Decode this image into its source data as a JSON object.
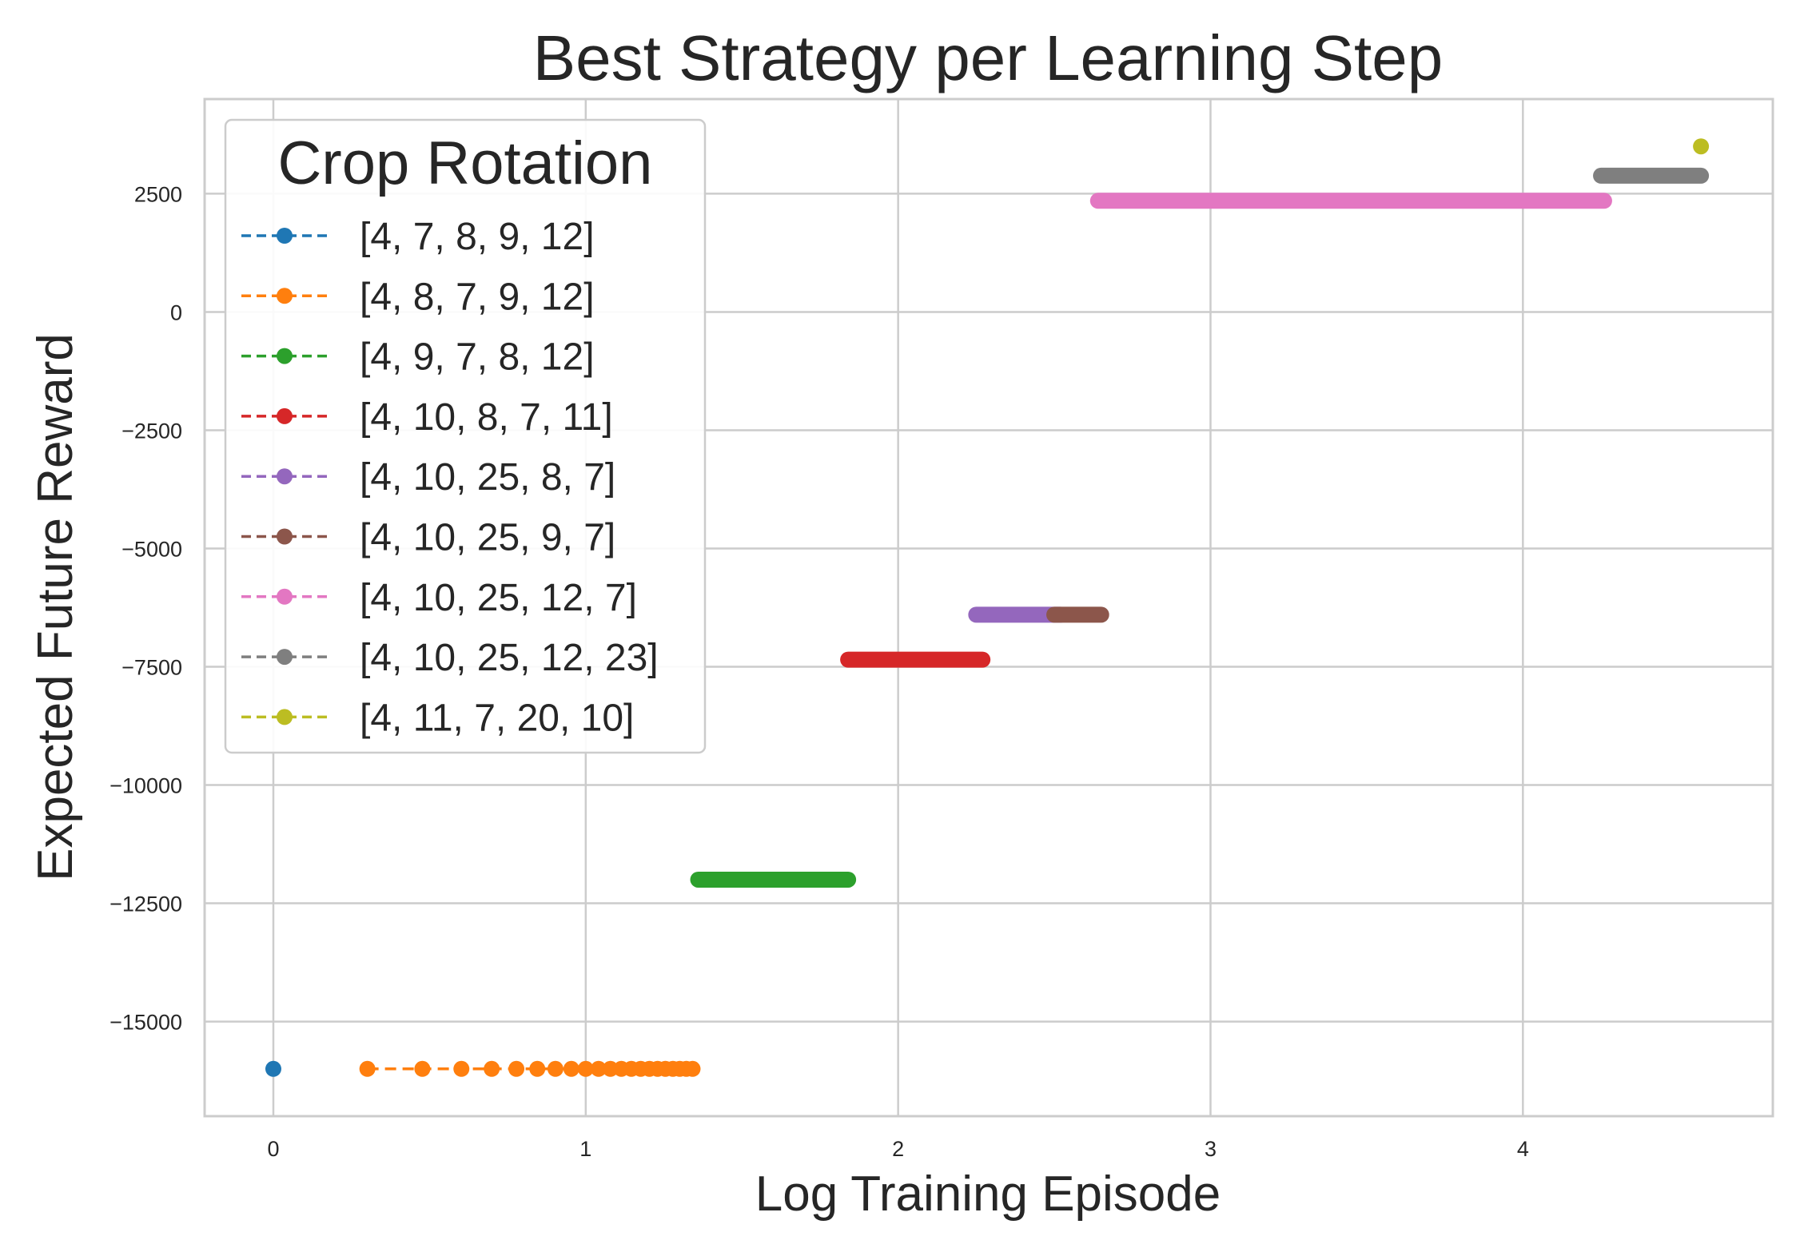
{
  "chart_data": {
    "type": "line",
    "title": "Best Strategy per Learning Step",
    "xlabel": "Log Training Episode",
    "ylabel": "Expected Future Reward",
    "xlim": [
      -0.22,
      4.8
    ],
    "ylim": [
      -17000,
      4500
    ],
    "xticks": [
      0,
      1,
      2,
      3,
      4
    ],
    "xtick_labels": [
      "0",
      "1",
      "2",
      "3",
      "4"
    ],
    "yticks": [
      2500,
      0,
      -2500,
      -5000,
      -7500,
      -10000,
      -12500,
      -15000
    ],
    "ytick_labels": [
      "2500",
      "0",
      "−2500",
      "−5000",
      "−7500",
      "−10000",
      "−12500",
      "−15000"
    ],
    "grid": true,
    "legend": {
      "title": "Crop Rotation",
      "placement": "upper-left"
    },
    "series": [
      {
        "name": "[4, 7, 8, 9, 12]",
        "color": "#1f77b4",
        "style": "points",
        "x": [
          0.0
        ],
        "y": [
          -16000
        ]
      },
      {
        "name": "[4, 8, 7, 9, 12]",
        "color": "#ff7f0e",
        "style": "points",
        "x": [
          0.301,
          0.477,
          0.602,
          0.699,
          0.778,
          0.845,
          0.903,
          0.954,
          1.0,
          1.041,
          1.079,
          1.114,
          1.146,
          1.176,
          1.204,
          1.23,
          1.255,
          1.279,
          1.301,
          1.322,
          1.342
        ],
        "y": [
          -16000,
          -16000,
          -16000,
          -16000,
          -16000,
          -16000,
          -16000,
          -16000,
          -16000,
          -16000,
          -16000,
          -16000,
          -16000,
          -16000,
          -16000,
          -16000,
          -16000,
          -16000,
          -16000,
          -16000,
          -16000
        ]
      },
      {
        "name": "[4, 9, 7, 8, 12]",
        "color": "#2ca02c",
        "style": "band",
        "x": [
          1.36,
          1.84
        ],
        "y": [
          -12000,
          -12000
        ]
      },
      {
        "name": "[4, 10, 8, 7, 11]",
        "color": "#d62728",
        "style": "band",
        "x": [
          1.84,
          2.27
        ],
        "y": [
          -7350,
          -7350
        ]
      },
      {
        "name": "[4, 10, 25, 8, 7]",
        "color": "#9467bd",
        "style": "band",
        "x": [
          2.25,
          2.52
        ],
        "y": [
          -6400,
          -6400
        ]
      },
      {
        "name": "[4, 10, 25, 9, 7]",
        "color": "#8c564b",
        "style": "band",
        "x": [
          2.5,
          2.65
        ],
        "y": [
          -6400,
          -6400
        ]
      },
      {
        "name": "[4, 10, 25, 12, 7]",
        "color": "#e377c2",
        "style": "band",
        "x": [
          2.64,
          4.26
        ],
        "y": [
          2350,
          2350
        ]
      },
      {
        "name": "[4, 10, 25, 12, 23]",
        "color": "#7f7f7f",
        "style": "band",
        "x": [
          4.25,
          4.57
        ],
        "y": [
          2880,
          2880
        ]
      },
      {
        "name": "[4, 11, 7, 20, 10]",
        "color": "#bcbd22",
        "style": "points",
        "x": [
          4.57
        ],
        "y": [
          3500
        ]
      }
    ]
  }
}
